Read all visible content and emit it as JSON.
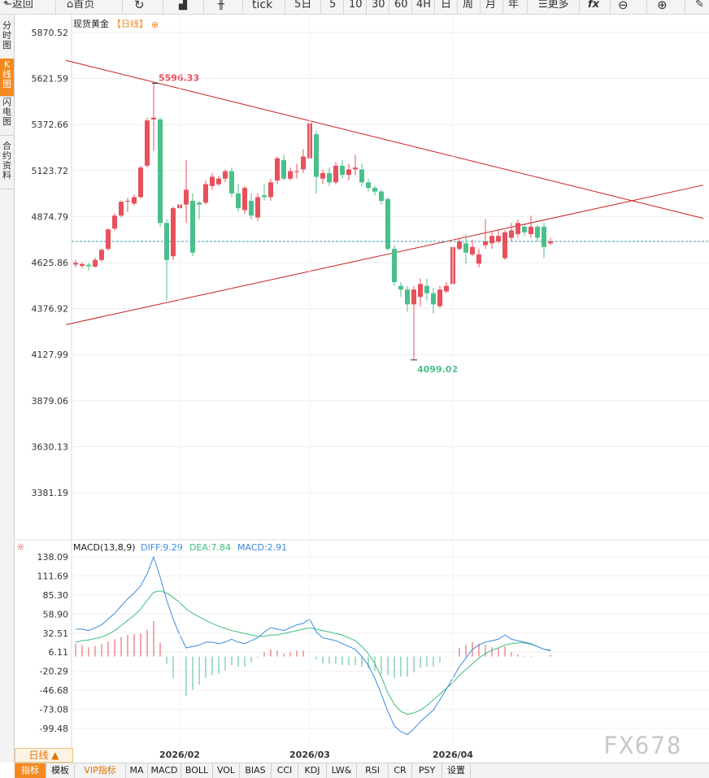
{
  "toolbar": {
    "back": "返回",
    "home": "首页",
    "tick": "tick",
    "periods": [
      "5日",
      "5",
      "10",
      "30",
      "60",
      "4H",
      "日",
      "周",
      "月",
      "年"
    ],
    "more": "更多"
  },
  "sidebar": [
    "分时图",
    "K线图",
    "闪电图",
    "合约资料"
  ],
  "header": {
    "title": "现货黄金",
    "period_tag": "【日线】"
  },
  "price_axis": [
    "5870.52",
    "5621.59",
    "5372.66",
    "5123.72",
    "4874.79",
    "4625.86",
    "4376.92",
    "4127.99",
    "3879.06",
    "3630.13",
    "3381.19"
  ],
  "macd_header": {
    "name": "MACD(13,8,9)",
    "diff": "DIFF:9.29",
    "dea": "DEA:7.84",
    "macd": "MACD:2.91"
  },
  "macd_axis": [
    "138.09",
    "111.69",
    "85.30",
    "58.90",
    "32.51",
    "6.11",
    "-20.29",
    "-46.68",
    "-73.08",
    "-99.48"
  ],
  "colors": {
    "up": "#e8505b",
    "down": "#4bbf8a",
    "trend": "#c81e1e",
    "diff": "#3b8be0",
    "dea": "#3fbe7a",
    "current_line": "#3a9bb0",
    "accent": "#f48a1f"
  },
  "chart_data": {
    "type": "candlestick",
    "title": "现货黄金",
    "date_ticks": [
      "2026/02",
      "2026/03",
      "2026/04"
    ],
    "ylim": [
      3381.19,
      5870.52
    ],
    "high_label": "5596.33",
    "low_label": "4099.02",
    "current_price": 4740,
    "candles": [
      [
        4615,
        4625,
        4600,
        4640
      ],
      [
        4608,
        4618,
        4595,
        4628
      ],
      [
        4614,
        4606,
        4582,
        4624
      ],
      [
        4604,
        4640,
        4598,
        4652
      ],
      [
        4640,
        4695,
        4630,
        4702
      ],
      [
        4700,
        4805,
        4690,
        4812
      ],
      [
        4810,
        4880,
        4800,
        4892
      ],
      [
        4880,
        4955,
        4870,
        4962
      ],
      [
        4960,
        4960,
        4900,
        4975
      ],
      [
        4945,
        4980,
        4935,
        4995
      ],
      [
        4980,
        5140,
        4972,
        5150
      ],
      [
        5150,
        5395,
        5140,
        5410
      ],
      [
        5400,
        5410,
        5230,
        5596
      ],
      [
        5400,
        4840,
        4820,
        5410
      ],
      [
        4840,
        4640,
        4420,
        4860
      ],
      [
        4660,
        4920,
        4640,
        4930
      ],
      [
        4920,
        4940,
        4760,
        4980
      ],
      [
        4940,
        5020,
        4840,
        5180
      ],
      [
        4960,
        4680,
        4660,
        5000
      ],
      [
        4950,
        4940,
        4860,
        4960
      ],
      [
        4950,
        5050,
        4940,
        5070
      ],
      [
        5040,
        5090,
        5020,
        5110
      ],
      [
        5050,
        5080,
        5040,
        5095
      ],
      [
        5080,
        5120,
        5060,
        5130
      ],
      [
        5120,
        5000,
        4980,
        5140
      ],
      [
        5000,
        4920,
        4900,
        5050
      ],
      [
        4910,
        5030,
        4890,
        5040
      ],
      [
        4960,
        4880,
        4860,
        5000
      ],
      [
        4870,
        4980,
        4850,
        5000
      ],
      [
        4990,
        4980,
        4960,
        5050
      ],
      [
        4980,
        5060,
        4960,
        5080
      ],
      [
        5070,
        5190,
        5050,
        5200
      ],
      [
        5180,
        5080,
        5070,
        5210
      ],
      [
        5080,
        5120,
        5070,
        5140
      ],
      [
        5120,
        5120,
        5080,
        5160
      ],
      [
        5130,
        5200,
        5110,
        5240
      ],
      [
        5190,
        5380,
        5180,
        5420
      ],
      [
        5320,
        5090,
        5000,
        5340
      ],
      [
        5080,
        5110,
        5050,
        5130
      ],
      [
        5110,
        5060,
        5040,
        5140
      ],
      [
        5060,
        5150,
        5050,
        5170
      ],
      [
        5150,
        5100,
        5080,
        5180
      ],
      [
        5100,
        5130,
        5070,
        5160
      ],
      [
        5130,
        5140,
        5100,
        5210
      ],
      [
        5130,
        5060,
        5040,
        5160
      ],
      [
        5060,
        5030,
        5010,
        5080
      ],
      [
        5030,
        5010,
        4990,
        5040
      ],
      [
        5010,
        4960,
        4940,
        5020
      ],
      [
        4970,
        4700,
        4690,
        4980
      ],
      [
        4700,
        4520,
        4500,
        4720
      ],
      [
        4500,
        4480,
        4440,
        4520
      ],
      [
        4480,
        4400,
        4360,
        4500
      ],
      [
        4400,
        4480,
        4099,
        4500
      ],
      [
        4440,
        4510,
        4390,
        4540
      ],
      [
        4500,
        4460,
        4420,
        4540
      ],
      [
        4460,
        4400,
        4350,
        4490
      ],
      [
        4390,
        4480,
        4380,
        4500
      ],
      [
        4470,
        4500,
        4460,
        4520
      ],
      [
        4510,
        4710,
        4500,
        4720
      ],
      [
        4700,
        4740,
        4690,
        4760
      ],
      [
        4730,
        4680,
        4620,
        4780
      ],
      [
        4670,
        4710,
        4660,
        4750
      ],
      [
        4620,
        4670,
        4600,
        4700
      ],
      [
        4720,
        4740,
        4700,
        4860
      ],
      [
        4730,
        4770,
        4700,
        4790
      ],
      [
        4740,
        4770,
        4730,
        4800
      ],
      [
        4650,
        4790,
        4640,
        4800
      ],
      [
        4760,
        4800,
        4740,
        4840
      ],
      [
        4780,
        4840,
        4760,
        4860
      ],
      [
        4820,
        4790,
        4770,
        4830
      ],
      [
        4780,
        4820,
        4760,
        4880
      ],
      [
        4820,
        4760,
        4740,
        4830
      ],
      [
        4820,
        4710,
        4650,
        4840
      ],
      [
        4730,
        4740,
        4720,
        4760
      ]
    ],
    "trendlines": [
      {
        "from": [
          -1.5,
          5720
        ],
        "to": [
          96.5,
          4865
        ]
      },
      {
        "from": [
          -1.5,
          4290
        ],
        "to": [
          96.5,
          5045
        ]
      }
    ],
    "macd": {
      "ylim": [
        -99.48,
        138.09
      ],
      "diff": [
        38,
        38,
        36,
        40,
        44,
        52,
        60,
        70,
        80,
        88,
        98,
        115,
        138,
        110,
        78,
        52,
        30,
        12,
        14,
        16,
        20,
        20,
        18,
        20,
        24,
        20,
        18,
        22,
        26,
        34,
        40,
        38,
        36,
        40,
        44,
        46,
        52,
        34,
        26,
        24,
        22,
        18,
        14,
        10,
        0,
        -12,
        -30,
        -52,
        -76,
        -96,
        -104,
        -108,
        -100,
        -90,
        -82,
        -74,
        -60,
        -45,
        -30,
        -14,
        -2,
        10,
        16,
        20,
        22,
        24,
        30,
        24,
        22,
        20,
        18,
        14,
        10,
        9.29
      ],
      "dea": [
        20,
        22,
        23,
        25,
        27,
        31,
        36,
        43,
        50,
        57,
        66,
        78,
        89,
        91,
        88,
        82,
        75,
        66,
        60,
        55,
        50,
        46,
        42,
        39,
        36,
        34,
        32,
        30,
        28,
        28,
        30,
        30,
        32,
        34,
        36,
        38,
        40,
        38,
        36,
        34,
        32,
        30,
        26,
        22,
        14,
        4,
        -10,
        -28,
        -50,
        -66,
        -76,
        -80,
        -78,
        -74,
        -68,
        -60,
        -52,
        -44,
        -36,
        -26,
        -18,
        -10,
        -2,
        4,
        9,
        12,
        16,
        18,
        19,
        19,
        17,
        14,
        10,
        7.84
      ],
      "hist": [
        18,
        16,
        13,
        15,
        17,
        21,
        24,
        27,
        30,
        31,
        32,
        37,
        49,
        19,
        -10,
        -30,
        -45,
        -54,
        -46,
        -39,
        -30,
        -26,
        -24,
        -19,
        -12,
        -14,
        -14,
        -8,
        -2,
        6,
        10,
        8,
        4,
        6,
        8,
        8,
        12,
        -4,
        -10,
        -10,
        -10,
        -12,
        -12,
        -12,
        -14,
        -16,
        -20,
        -24,
        -26,
        -30,
        -28,
        -28,
        -22,
        -16,
        -14,
        -14,
        -8,
        -1,
        6,
        12,
        16,
        20,
        18,
        16,
        13,
        12,
        14,
        6,
        3,
        1,
        1,
        0,
        0,
        2.91
      ]
    }
  },
  "bottom": {
    "period": "日线 ▲",
    "tabs": [
      "指标",
      "模板",
      "VIP指标",
      "MA",
      "MACD",
      "BOLL",
      "VOL",
      "BIAS",
      "CCI",
      "KDJ",
      "LW&",
      "RSI",
      "CR",
      "PSY",
      "设置"
    ]
  },
  "watermark": "FX678"
}
